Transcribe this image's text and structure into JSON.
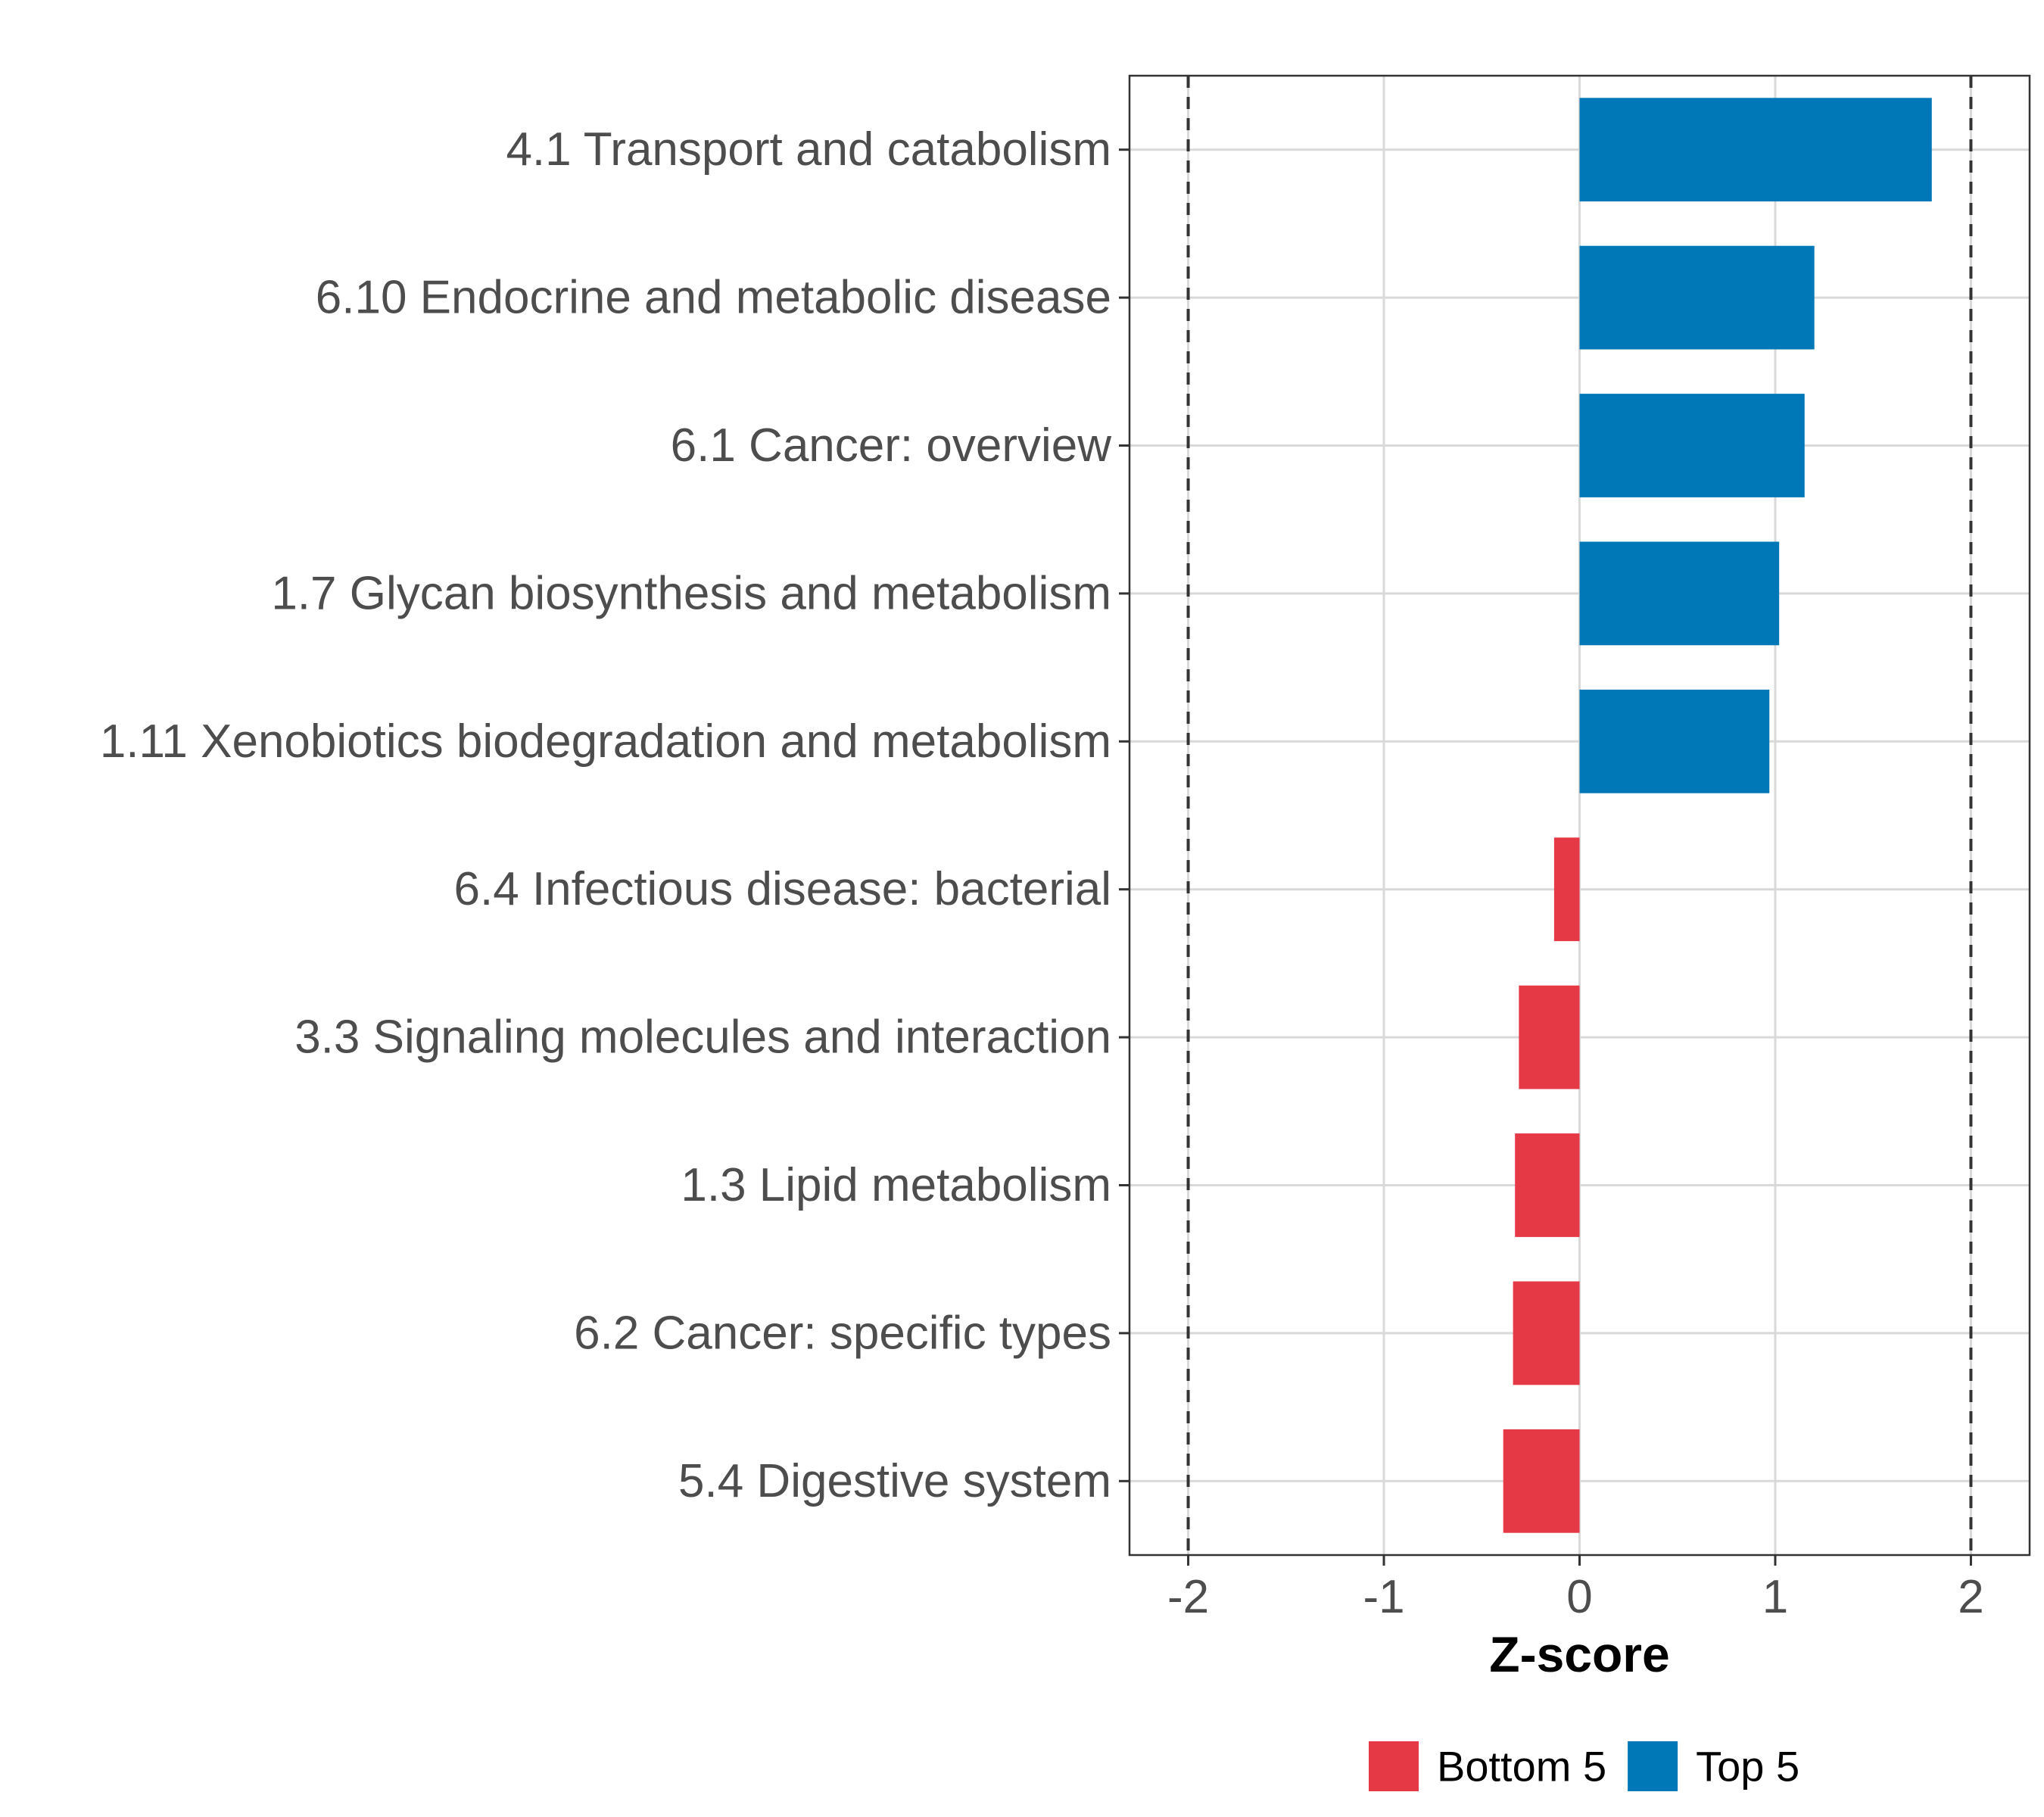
{
  "chart_data": {
    "type": "bar",
    "orientation": "horizontal",
    "title": "",
    "xlabel": "Z-score",
    "ylabel": "",
    "xlim": [
      -2.3,
      2.3
    ],
    "xticks": [
      -2,
      -1,
      0,
      1,
      2
    ],
    "xtick_labels": [
      "-2",
      "-1",
      "0",
      "1",
      "2"
    ],
    "reference_lines": [
      -2,
      2
    ],
    "grid": true,
    "categories": [
      "4.1 Transport and catabolism",
      "6.10 Endocrine and metabolic disease",
      "6.1 Cancer: overview",
      "1.7 Glycan biosynthesis and metabolism",
      "1.11 Xenobiotics biodegradation and metabolism",
      "6.4 Infectious disease: bacterial",
      "3.3 Signaling molecules and interaction",
      "1.3 Lipid metabolism",
      "6.2 Cancer: specific types",
      "5.4 Digestive system"
    ],
    "values": [
      1.8,
      1.2,
      1.15,
      1.02,
      0.97,
      -0.13,
      -0.31,
      -0.33,
      -0.34,
      -0.39
    ],
    "groups": [
      "Top 5",
      "Top 5",
      "Top 5",
      "Top 5",
      "Top 5",
      "Bottom 5",
      "Bottom 5",
      "Bottom 5",
      "Bottom 5",
      "Bottom 5"
    ],
    "legend": [
      {
        "name": "Bottom 5",
        "color": "#e63946"
      },
      {
        "name": "Top 5",
        "color": "#0077b6"
      }
    ],
    "legend_position": "bottom"
  }
}
